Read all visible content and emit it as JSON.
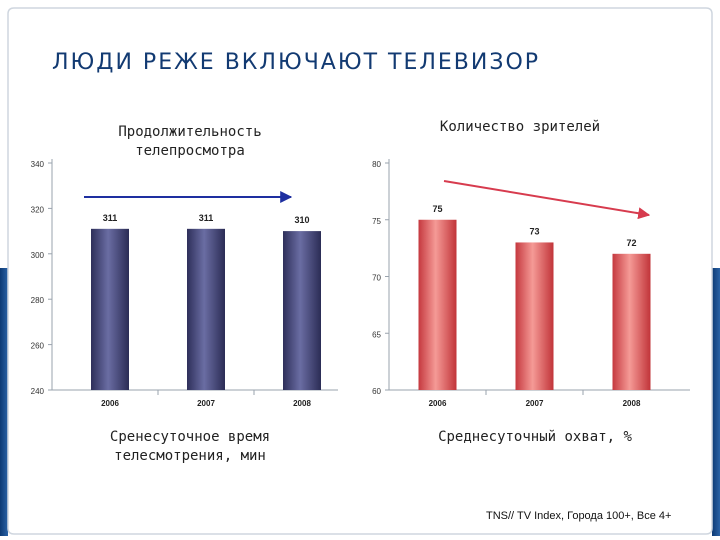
{
  "title": "ЛЮДИ РЕЖЕ ВКЛЮЧАЮТ ТЕЛЕВИЗОР",
  "source": "TNS// TV Index, Города 100+, Все 4+",
  "colors": {
    "accent": "#1b4f8c",
    "title": "#123a72",
    "trend_arrow": "#d73b4e",
    "bar_left": "#4d4f80",
    "bar_right": "#e8676a"
  },
  "chart_data": [
    {
      "type": "bar",
      "title": "Продолжительность телепросмотра",
      "subtitle": "Сренесуточное время телесмотрения, мин",
      "categories": [
        "2006",
        "2007",
        "2008"
      ],
      "values": [
        311,
        311,
        310
      ],
      "data_labels": [
        "311",
        "311",
        "310"
      ],
      "yticks": [
        "340",
        "320",
        "300",
        "280",
        "260",
        "240"
      ],
      "ylim": [
        240,
        340
      ],
      "grid": false,
      "trend_arrow": "flat"
    },
    {
      "type": "bar",
      "title": "Количество зрителей",
      "subtitle": "Среднесуточный охват, %",
      "categories": [
        "2006",
        "2007",
        "2008"
      ],
      "values": [
        75,
        73,
        72
      ],
      "data_labels": [
        "75",
        "73",
        "72"
      ],
      "yticks": [
        "80",
        "75",
        "70",
        "65",
        "60"
      ],
      "ylim": [
        60,
        80
      ],
      "grid": false,
      "trend_arrow": "down"
    }
  ]
}
